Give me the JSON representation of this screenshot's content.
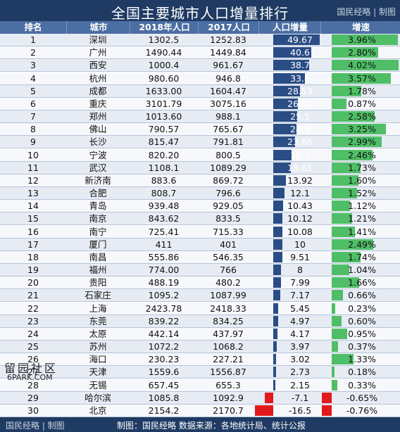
{
  "header": {
    "title": "全国主要城市人口增量排行",
    "brand": "国民经略 | 制图"
  },
  "columns": [
    "排名",
    "城市",
    "2018年人口",
    "2017人口",
    "人口增量",
    "增速"
  ],
  "footer": {
    "brand": "国民经略 | 制图",
    "source": "制图：国民经略 数据来源：各地统计局、统计公报"
  },
  "watermark": {
    "line1": "留园社区",
    "line2": "6PARK.COM"
  },
  "colors": {
    "header_bg": "#1f3b63",
    "column_header_bg": "#4b6ea3",
    "increase_bar": "#2b4d86",
    "growth_bar": "#4fbe67",
    "negative_bar": "#e0191b"
  },
  "chart_data": {
    "type": "table",
    "title": "全国主要城市人口增量排行",
    "columns": [
      "排名",
      "城市",
      "2018年人口",
      "2017人口",
      "人口增量",
      "增速"
    ],
    "rows": [
      {
        "rank": "1",
        "city": "深圳",
        "pop2018": "1302.5",
        "pop2017": "1252.83",
        "increase": "49.67",
        "increase_value": 49.67,
        "growth": "3.96%",
        "growth_value": 3.96
      },
      {
        "rank": "2",
        "city": "广州",
        "pop2018": "1490.44",
        "pop2017": "1449.84",
        "increase": "40.6",
        "increase_value": 40.6,
        "growth": "2.80%",
        "growth_value": 2.8
      },
      {
        "rank": "3",
        "city": "西安",
        "pop2018": "1000.4",
        "pop2017": "961.67",
        "increase": "38.7",
        "increase_value": 38.7,
        "growth": "4.02%",
        "growth_value": 4.02
      },
      {
        "rank": "4",
        "city": "杭州",
        "pop2018": "980.60",
        "pop2017": "946.8",
        "increase": "33.8",
        "increase_value": 33.8,
        "growth": "3.57%",
        "growth_value": 3.57
      },
      {
        "rank": "5",
        "city": "成都",
        "pop2018": "1633.00",
        "pop2017": "1604.47",
        "increase": "28.53",
        "increase_value": 28.53,
        "growth": "1.78%",
        "growth_value": 1.78
      },
      {
        "rank": "6",
        "city": "重庆",
        "pop2018": "3101.79",
        "pop2017": "3075.16",
        "increase": "26.63",
        "increase_value": 26.63,
        "growth": "0.87%",
        "growth_value": 0.87
      },
      {
        "rank": "7",
        "city": "郑州",
        "pop2018": "1013.60",
        "pop2017": "988.1",
        "increase": "25.5",
        "increase_value": 25.5,
        "growth": "2.58%",
        "growth_value": 2.58
      },
      {
        "rank": "8",
        "city": "佛山",
        "pop2018": "790.57",
        "pop2017": "765.67",
        "increase": "24.9",
        "increase_value": 24.9,
        "growth": "3.25%",
        "growth_value": 3.25
      },
      {
        "rank": "9",
        "city": "长沙",
        "pop2018": "815.47",
        "pop2017": "791.81",
        "increase": "23.66",
        "increase_value": 23.66,
        "growth": "2.99%",
        "growth_value": 2.99
      },
      {
        "rank": "10",
        "city": "宁波",
        "pop2018": "820.20",
        "pop2017": "800.5",
        "increase": "19.7",
        "increase_value": 19.7,
        "growth": "2.46%",
        "growth_value": 2.46
      },
      {
        "rank": "11",
        "city": "武汉",
        "pop2018": "1108.1",
        "pop2017": "1089.29",
        "increase": "18.81",
        "increase_value": 18.81,
        "growth": "1.73%",
        "growth_value": 1.73
      },
      {
        "rank": "12",
        "city": "新济南",
        "pop2018": "883.6",
        "pop2017": "869.72",
        "increase": "13.92",
        "increase_value": 13.92,
        "growth": "1.60%",
        "growth_value": 1.6
      },
      {
        "rank": "13",
        "city": "合肥",
        "pop2018": "808.7",
        "pop2017": "796.6",
        "increase": "12.1",
        "increase_value": 12.1,
        "growth": "1.52%",
        "growth_value": 1.52
      },
      {
        "rank": "14",
        "city": "青岛",
        "pop2018": "939.48",
        "pop2017": "929.05",
        "increase": "10.43",
        "increase_value": 10.43,
        "growth": "1.12%",
        "growth_value": 1.12
      },
      {
        "rank": "15",
        "city": "南京",
        "pop2018": "843.62",
        "pop2017": "833.5",
        "increase": "10.12",
        "increase_value": 10.12,
        "growth": "1.21%",
        "growth_value": 1.21
      },
      {
        "rank": "16",
        "city": "南宁",
        "pop2018": "725.41",
        "pop2017": "715.33",
        "increase": "10.08",
        "increase_value": 10.08,
        "growth": "1.41%",
        "growth_value": 1.41
      },
      {
        "rank": "17",
        "city": "厦门",
        "pop2018": "411",
        "pop2017": "401",
        "increase": "10",
        "increase_value": 10,
        "growth": "2.49%",
        "growth_value": 2.49
      },
      {
        "rank": "18",
        "city": "南昌",
        "pop2018": "555.86",
        "pop2017": "546.35",
        "increase": "9.51",
        "increase_value": 9.51,
        "growth": "1.74%",
        "growth_value": 1.74
      },
      {
        "rank": "19",
        "city": "福州",
        "pop2018": "774.00",
        "pop2017": "766",
        "increase": "8",
        "increase_value": 8,
        "growth": "1.04%",
        "growth_value": 1.04
      },
      {
        "rank": "20",
        "city": "贵阳",
        "pop2018": "488.19",
        "pop2017": "480.2",
        "increase": "7.99",
        "increase_value": 7.99,
        "growth": "1.66%",
        "growth_value": 1.66
      },
      {
        "rank": "21",
        "city": "石家庄",
        "pop2018": "1095.2",
        "pop2017": "1087.99",
        "increase": "7.17",
        "increase_value": 7.17,
        "growth": "0.66%",
        "growth_value": 0.66
      },
      {
        "rank": "22",
        "city": "上海",
        "pop2018": "2423.78",
        "pop2017": "2418.33",
        "increase": "5.45",
        "increase_value": 5.45,
        "growth": "0.23%",
        "growth_value": 0.23
      },
      {
        "rank": "23",
        "city": "东莞",
        "pop2018": "839.22",
        "pop2017": "834.25",
        "increase": "4.97",
        "increase_value": 4.97,
        "growth": "0.60%",
        "growth_value": 0.6
      },
      {
        "rank": "24",
        "city": "太原",
        "pop2018": "442.14",
        "pop2017": "437.97",
        "increase": "4.17",
        "increase_value": 4.17,
        "growth": "0.95%",
        "growth_value": 0.95
      },
      {
        "rank": "25",
        "city": "苏州",
        "pop2018": "1072.2",
        "pop2017": "1068.2",
        "increase": "3.97",
        "increase_value": 3.97,
        "growth": "0.37%",
        "growth_value": 0.37
      },
      {
        "rank": "26",
        "city": "海口",
        "pop2018": "230.23",
        "pop2017": "227.21",
        "increase": "3.02",
        "increase_value": 3.02,
        "growth": "1.33%",
        "growth_value": 1.33
      },
      {
        "rank": "27",
        "city": "天津",
        "pop2018": "1559.6",
        "pop2017": "1556.87",
        "increase": "2.73",
        "increase_value": 2.73,
        "growth": "0.18%",
        "growth_value": 0.18
      },
      {
        "rank": "28",
        "city": "无锡",
        "pop2018": "657.45",
        "pop2017": "655.3",
        "increase": "2.15",
        "increase_value": 2.15,
        "growth": "0.33%",
        "growth_value": 0.33
      },
      {
        "rank": "29",
        "city": "哈尔滨",
        "pop2018": "1085.8",
        "pop2017": "1092.9",
        "increase": "-7.1",
        "increase_value": -7.1,
        "growth": "-0.65%",
        "growth_value": -0.65
      },
      {
        "rank": "30",
        "city": "北京",
        "pop2018": "2154.2",
        "pop2017": "2170.7",
        "increase": "-16.5",
        "increase_value": -16.5,
        "growth": "-0.76%",
        "growth_value": -0.76
      }
    ]
  }
}
